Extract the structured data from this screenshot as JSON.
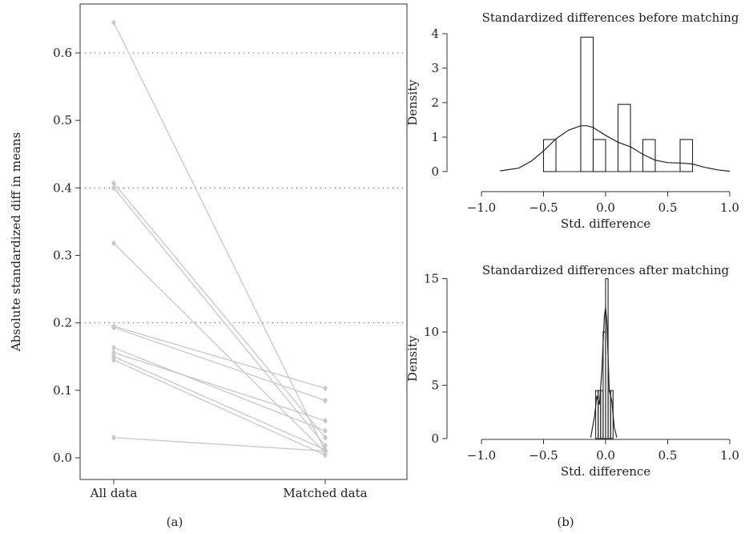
{
  "panel_labels": {
    "a": "(a)",
    "b": "(b)"
  },
  "chart_data": [
    {
      "type": "line",
      "ylabel": "Absolute standardized diff in means",
      "categories": [
        "All data",
        "Matched data"
      ],
      "ylim": [
        0,
        0.65
      ],
      "yticks": [
        "0.0",
        "0.1",
        "0.2",
        "0.3",
        "0.4",
        "0.5",
        "0.6"
      ],
      "reference_lines": [
        0.2,
        0.4,
        0.6
      ],
      "series": [
        {
          "values": [
            0.645,
            0.01
          ]
        },
        {
          "values": [
            0.407,
            0.03
          ]
        },
        {
          "values": [
            0.4,
            0.018
          ]
        },
        {
          "values": [
            0.318,
            0.008
          ]
        },
        {
          "values": [
            0.195,
            0.103
          ]
        },
        {
          "values": [
            0.193,
            0.085
          ]
        },
        {
          "values": [
            0.163,
            0.04
          ]
        },
        {
          "values": [
            0.156,
            0.055
          ]
        },
        {
          "values": [
            0.15,
            0.012
          ]
        },
        {
          "values": [
            0.145,
            0.004
          ]
        },
        {
          "values": [
            0.03,
            0.01
          ]
        }
      ],
      "colors": {
        "line": "#c8c8c8",
        "point": "#c8c8c8"
      }
    },
    {
      "type": "bar",
      "title": "Standardized differences before matching",
      "xlabel": "Std. difference",
      "ylabel": "Density",
      "xlim": [
        -1.0,
        1.0
      ],
      "ylim": [
        0,
        4
      ],
      "xticks": [
        "−1.0",
        "−0.5",
        "0.0",
        "0.5",
        "1.0"
      ],
      "yticks": [
        "0",
        "1",
        "2",
        "3",
        "4"
      ],
      "bars": [
        {
          "x0": -0.5,
          "x1": -0.4,
          "density": 0.93
        },
        {
          "x0": -0.2,
          "x1": -0.1,
          "density": 3.9
        },
        {
          "x0": -0.1,
          "x1": 0.0,
          "density": 0.93
        },
        {
          "x0": 0.1,
          "x1": 0.2,
          "density": 1.95
        },
        {
          "x0": 0.3,
          "x1": 0.4,
          "density": 0.93
        },
        {
          "x0": 0.6,
          "x1": 0.7,
          "density": 0.93
        }
      ],
      "density_curve": {
        "x": [
          -0.85,
          -0.7,
          -0.6,
          -0.5,
          -0.4,
          -0.3,
          -0.2,
          -0.15,
          -0.1,
          0.0,
          0.1,
          0.2,
          0.3,
          0.4,
          0.5,
          0.6,
          0.7,
          0.8,
          0.9,
          1.0
        ],
        "y": [
          0.02,
          0.1,
          0.3,
          0.6,
          0.95,
          1.2,
          1.33,
          1.33,
          1.28,
          1.05,
          0.85,
          0.72,
          0.5,
          0.33,
          0.26,
          0.25,
          0.22,
          0.12,
          0.05,
          0.01
        ]
      }
    },
    {
      "type": "bar",
      "title": "Standardized differences after matching",
      "xlabel": "Std. difference",
      "ylabel": "Density",
      "xlim": [
        -1.0,
        1.0
      ],
      "ylim": [
        0,
        15
      ],
      "xticks": [
        "−1.0",
        "−0.5",
        "0.0",
        "0.5",
        "1.0"
      ],
      "yticks": [
        "0",
        "5",
        "10",
        "15"
      ],
      "bars": [
        {
          "x0": -0.08,
          "x1": -0.06,
          "density": 4.5
        },
        {
          "x0": -0.06,
          "x1": -0.04,
          "density": 4.5
        },
        {
          "x0": -0.04,
          "x1": -0.02,
          "density": 4.5
        },
        {
          "x0": -0.02,
          "x1": 0.0,
          "density": 10.0
        },
        {
          "x0": 0.0,
          "x1": 0.02,
          "density": 15.0
        },
        {
          "x0": 0.02,
          "x1": 0.04,
          "density": 4.5
        },
        {
          "x0": 0.04,
          "x1": 0.06,
          "density": 4.5
        }
      ],
      "density_curve": {
        "x": [
          -0.12,
          -0.09,
          -0.07,
          -0.05,
          -0.03,
          -0.01,
          0.0,
          0.01,
          0.03,
          0.05,
          0.07,
          0.09
        ],
        "y": [
          0.1,
          2.0,
          4.0,
          3.2,
          6.5,
          11.5,
          12.3,
          11.0,
          4.5,
          3.5,
          1.0,
          0.1
        ]
      }
    }
  ]
}
